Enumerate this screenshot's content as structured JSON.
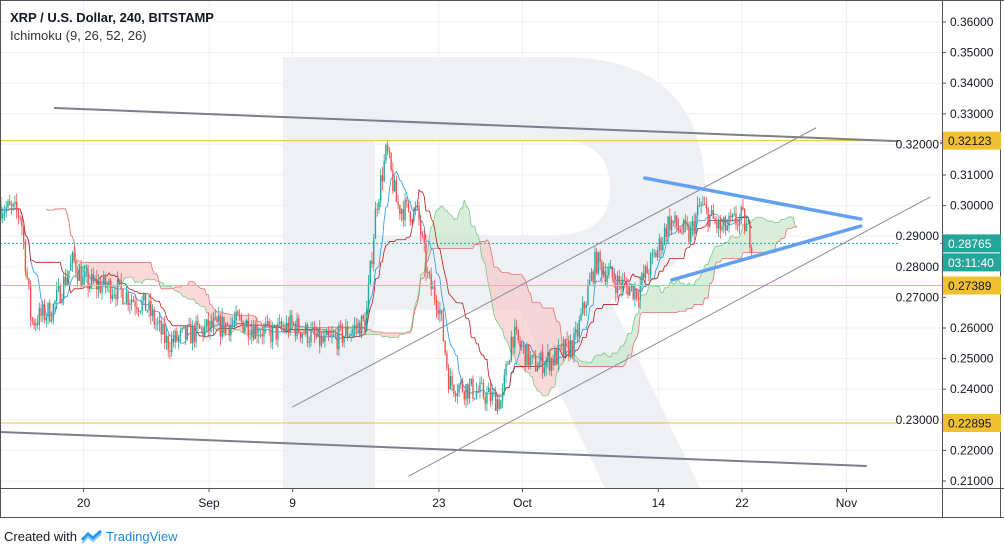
{
  "header": {
    "title": "XRP / U.S. Dollar, 240, BITSTAMP",
    "indicator": "Ichimoku (9, 26, 52, 26)"
  },
  "footer": {
    "created_with": "Created with",
    "brand": "TradingView"
  },
  "colors": {
    "up": "#26a69a",
    "down": "#ef5350",
    "level": "#f0c030",
    "price_tag": "#26a69a",
    "triangle": "#64a0f0",
    "trend": "#787b86",
    "cloud_up": "#c8e6c9",
    "cloud_down": "#f8c8c8"
  },
  "chart_data": {
    "type": "candlestick",
    "symbol": "XRP/USD",
    "interval": "240",
    "exchange": "BITSTAMP",
    "ylim": [
      0.205,
      0.365
    ],
    "y_ticks": [
      "0.36000",
      "0.35000",
      "0.34000",
      "0.33000",
      "0.32000",
      "0.31000",
      "0.30000",
      "0.29000",
      "0.28000",
      "0.27000",
      "0.26000",
      "0.25000",
      "0.24000",
      "0.23000",
      "0.22000",
      "0.21000"
    ],
    "x_ticks": [
      {
        "date": "2019-08-20",
        "label": "20"
      },
      {
        "date": "2019-09-01",
        "label": "Sep"
      },
      {
        "date": "2019-09-09",
        "label": "9"
      },
      {
        "date": "2019-09-23",
        "label": "23"
      },
      {
        "date": "2019-10-01",
        "label": "Oct"
      },
      {
        "date": "2019-10-14",
        "label": "14"
      },
      {
        "date": "2019-10-22",
        "label": "22"
      },
      {
        "date": "2019-11-01",
        "label": "Nov"
      }
    ],
    "price_path": [
      [
        "2019-08-12",
        0.3
      ],
      [
        "2019-08-14",
        0.297
      ],
      [
        "2019-08-15",
        0.262
      ],
      [
        "2019-08-17",
        0.266
      ],
      [
        "2019-08-19",
        0.282
      ],
      [
        "2019-08-20",
        0.275
      ],
      [
        "2019-08-23",
        0.273
      ],
      [
        "2019-08-26",
        0.267
      ],
      [
        "2019-08-28",
        0.255
      ],
      [
        "2019-08-31",
        0.259
      ],
      [
        "2019-09-04",
        0.262
      ],
      [
        "2019-09-07",
        0.258
      ],
      [
        "2019-09-09",
        0.261
      ],
      [
        "2019-09-12",
        0.255
      ],
      [
        "2019-09-14",
        0.258
      ],
      [
        "2019-09-16",
        0.262
      ],
      [
        "2019-09-17",
        0.3
      ],
      [
        "2019-09-18",
        0.318
      ],
      [
        "2019-09-19",
        0.3
      ],
      [
        "2019-09-21",
        0.297
      ],
      [
        "2019-09-22",
        0.275
      ],
      [
        "2019-09-23",
        0.268
      ],
      [
        "2019-09-24",
        0.242
      ],
      [
        "2019-09-26",
        0.24
      ],
      [
        "2019-09-29",
        0.236
      ],
      [
        "2019-09-30",
        0.258
      ],
      [
        "2019-10-02",
        0.248
      ],
      [
        "2019-10-04",
        0.25
      ],
      [
        "2019-10-06",
        0.255
      ],
      [
        "2019-10-08",
        0.282
      ],
      [
        "2019-10-10",
        0.275
      ],
      [
        "2019-10-12",
        0.272
      ],
      [
        "2019-10-14",
        0.286
      ],
      [
        "2019-10-15",
        0.295
      ],
      [
        "2019-10-17",
        0.29
      ],
      [
        "2019-10-18",
        0.3
      ],
      [
        "2019-10-20",
        0.292
      ],
      [
        "2019-10-22",
        0.296
      ],
      [
        "2019-10-23",
        0.288
      ]
    ],
    "levels": [
      {
        "price": 0.32123,
        "label": "0.32123"
      },
      {
        "price": 0.27389,
        "label": "0.27389"
      },
      {
        "price": 0.22895,
        "label": "0.22895"
      }
    ],
    "last_price": {
      "price": 0.28765,
      "label": "0.28765",
      "countdown": "03:11:40"
    },
    "trend_lines": [
      {
        "name": "descending-channel-top",
        "from": [
          "2019-08-17T06:00",
          0.3319
        ],
        "to": [
          "2019-11-10T03:00",
          0.3205
        ],
        "style": "thick-gray"
      },
      {
        "name": "descending-channel-bottom",
        "from": [
          "2019-08-12T00:00",
          0.226
        ],
        "to": [
          "2019-11-02T21:00",
          0.2149
        ],
        "style": "thick-gray"
      },
      {
        "name": "rising-channel-top",
        "from": [
          "2019-09-09T00:00",
          0.2342
        ],
        "to": [
          "2019-10-29T02:00",
          0.3254
        ],
        "style": "thin-gray"
      },
      {
        "name": "rising-channel-bottom",
        "from": [
          "2019-09-20T03:00",
          0.2116
        ],
        "to": [
          "2019-11-09T00:00",
          0.3028
        ],
        "style": "thin-gray"
      },
      {
        "name": "triangle-top",
        "from": [
          "2019-10-12T17:00",
          0.309
        ],
        "to": [
          "2019-11-02T09:00",
          0.2956
        ],
        "style": "blue"
      },
      {
        "name": "triangle-bottom",
        "from": [
          "2019-10-15T07:00",
          0.2757
        ],
        "to": [
          "2019-11-02T09:00",
          0.2933
        ],
        "style": "blue"
      }
    ]
  }
}
